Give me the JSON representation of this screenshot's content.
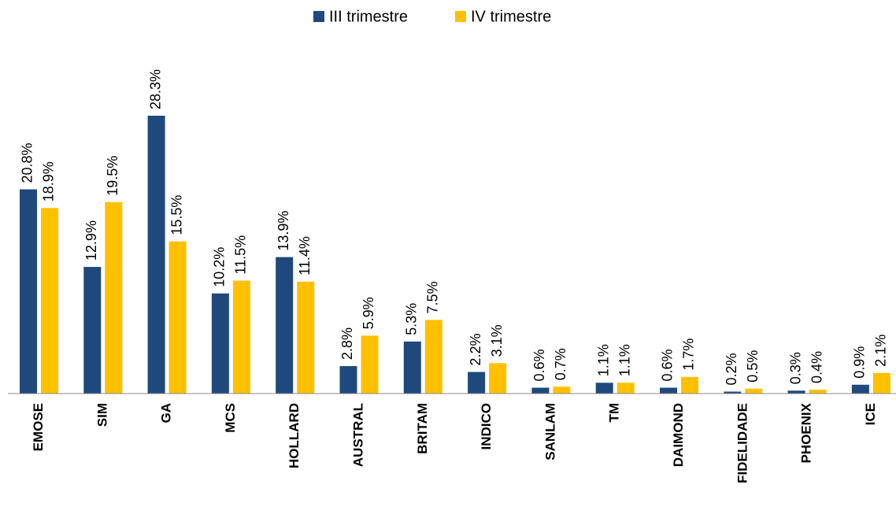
{
  "chart_data": {
    "type": "bar",
    "categories": [
      "EMOSE",
      "SIM",
      "GA",
      "MCS",
      "HOLLARD",
      "AUSTRAL",
      "BRITAM",
      "INDICO",
      "SANLAM",
      "TM",
      "DAIMOND",
      "FIDELIDADE",
      "PHOENIX",
      "ICE"
    ],
    "series": [
      {
        "name": "III trimestre",
        "color": "#1f497d",
        "values": [
          20.8,
          12.9,
          28.3,
          10.2,
          13.9,
          2.8,
          5.3,
          2.2,
          0.6,
          1.1,
          0.6,
          0.2,
          0.3,
          0.9
        ],
        "value_labels": [
          "20.8%",
          "12.9%",
          "28.3%",
          "10.2%",
          "13.9%",
          "2.8%",
          "5.3%",
          "2.2%",
          "0.6%",
          "1.1%",
          "0.6%",
          "0.2%",
          "0.3%",
          "0.9%"
        ]
      },
      {
        "name": "IV trimestre",
        "color": "#ffc000",
        "values": [
          18.9,
          19.5,
          15.5,
          11.5,
          11.4,
          5.9,
          7.5,
          3.1,
          0.7,
          1.1,
          1.7,
          0.5,
          0.4,
          2.1
        ],
        "value_labels": [
          "18.9%",
          "19.5%",
          "15.5%",
          "11.5%",
          "11.4%",
          "5.9%",
          "7.5%",
          "3.1%",
          "0.7%",
          "1.1%",
          "1.7%",
          "0.5%",
          "0.4%",
          "2.1%"
        ]
      }
    ],
    "legend": "top"
  }
}
